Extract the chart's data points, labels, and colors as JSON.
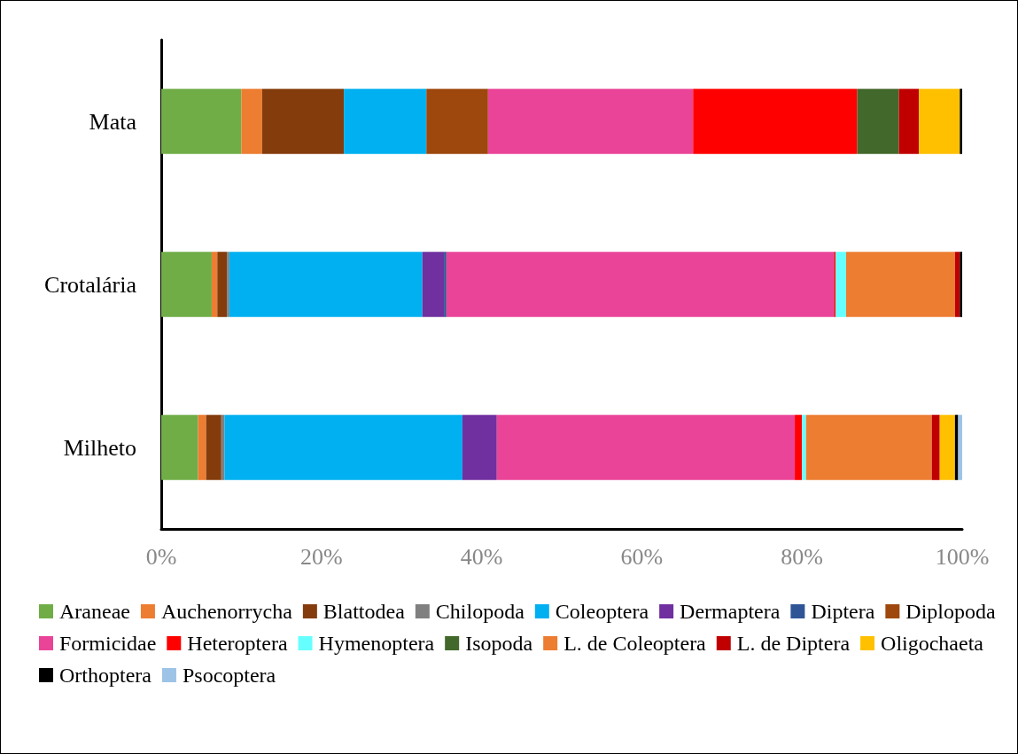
{
  "chart_data": {
    "type": "bar",
    "orientation": "horizontal",
    "stacked": true,
    "categories": [
      "Mata",
      "Crotalária",
      "Milheto"
    ],
    "xlim": [
      0,
      100
    ],
    "xticks": [
      {
        "value": 0,
        "label": "0%"
      },
      {
        "value": 20,
        "label": "20%"
      },
      {
        "value": 40,
        "label": "40%"
      },
      {
        "value": 60,
        "label": "60%"
      },
      {
        "value": 80,
        "label": "80%"
      },
      {
        "value": 100,
        "label": "100%"
      }
    ],
    "grid": false,
    "legend": "bottom",
    "series": [
      {
        "name": "Araneae",
        "color": "#70ad47",
        "values": [
          10.0,
          6.3,
          4.6
        ]
      },
      {
        "name": "Auchenorrycha",
        "color": "#ed7d31",
        "values": [
          2.6,
          0.7,
          1.0
        ]
      },
      {
        "name": "Blattodea",
        "color": "#843c0c",
        "values": [
          10.2,
          1.2,
          1.9
        ]
      },
      {
        "name": "Chilopoda",
        "color": "#808080",
        "values": [
          0,
          0.3,
          0.4
        ]
      },
      {
        "name": "Coleoptera",
        "color": "#00b0f0",
        "values": [
          10.3,
          24.1,
          29.7
        ]
      },
      {
        "name": "Dermaptera",
        "color": "#7030a0",
        "values": [
          0,
          2.7,
          4.3
        ]
      },
      {
        "name": "Diptera",
        "color": "#2f5597",
        "values": [
          0,
          0.3,
          0
        ]
      },
      {
        "name": "Diplopoda",
        "color": "#9e480e",
        "values": [
          7.7,
          0,
          0
        ]
      },
      {
        "name": "Formicidae",
        "color": "#ea4499",
        "values": [
          25.6,
          48.4,
          37.2
        ]
      },
      {
        "name": "Heteroptera",
        "color": "#ff0000",
        "values": [
          20.5,
          0.2,
          0.9
        ]
      },
      {
        "name": "Hymenoptera",
        "color": "#66ffff",
        "values": [
          0,
          1.3,
          0.5
        ]
      },
      {
        "name": "Isopoda",
        "color": "#43682b",
        "values": [
          5.2,
          0,
          0
        ]
      },
      {
        "name": "L. de Coleoptera",
        "color": "#ed7d31",
        "values": [
          0,
          13.6,
          15.7
        ]
      },
      {
        "name": "L. de Diptera",
        "color": "#c00000",
        "values": [
          2.5,
          0.6,
          1.0
        ]
      },
      {
        "name": "Oligochaeta",
        "color": "#ffc000",
        "values": [
          5.1,
          0,
          1.9
        ]
      },
      {
        "name": "Orthoptera",
        "color": "#000000",
        "values": [
          0.3,
          0.3,
          0.4
        ]
      },
      {
        "name": "Psocoptera",
        "color": "#9dc3e6",
        "values": [
          0,
          0,
          0.5
        ]
      }
    ]
  }
}
